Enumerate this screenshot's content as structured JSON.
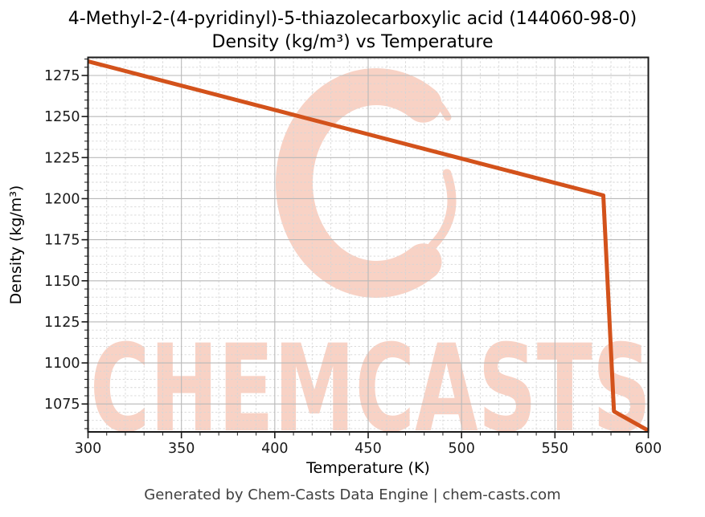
{
  "chart": {
    "title_line1": "4-Methyl-2-(4-pyridinyl)-5-thiazolecarboxylic acid (144060-98-0)",
    "title_line2": "Density (kg/m³) vs Temperature"
  },
  "watermark": {
    "logo": "chemcasts-c-swirl",
    "text": "CHEMCASTS",
    "color": "#f8d2c5"
  },
  "footer": {
    "text": "Generated by Chem-Casts Data Engine | chem-casts.com"
  },
  "chart_data": {
    "type": "line",
    "title": "4-Methyl-2-(4-pyridinyl)-5-thiazolecarboxylic acid (144060-98-0) — Density (kg/m³) vs Temperature",
    "xlabel": "Temperature (K)",
    "ylabel": "Density (kg/m³)",
    "xlim": [
      300,
      600
    ],
    "ylim": [
      1058,
      1286
    ],
    "x_major_ticks": [
      300,
      350,
      400,
      450,
      500,
      550,
      600
    ],
    "y_major_ticks": [
      1075,
      1100,
      1125,
      1150,
      1175,
      1200,
      1225,
      1250,
      1275
    ],
    "x_minor_step": 10,
    "y_minor_step": 5,
    "grid": "major solid + minor dashed, box spines, ticks bottom/left only",
    "legend": "none",
    "line_color": "#d3521b",
    "line_width": 5,
    "series": [
      {
        "name": "Density (kg/m³)",
        "x": [
          300,
          350,
          400,
          450,
          500,
          550,
          575.9,
          581.6,
          600
        ],
        "y": [
          1283.6,
          1268.8,
          1254.0,
          1239.2,
          1224.4,
          1209.6,
          1202.0,
          1070.5,
          1058.8
        ]
      }
    ],
    "annotations": "Linear solid-phase decrease from ~1284 at 300 K to ~1202 at ~576 K, sharp drop to ~1070 at ~582 K, then shallow decrease to ~1059 at 600 K"
  }
}
